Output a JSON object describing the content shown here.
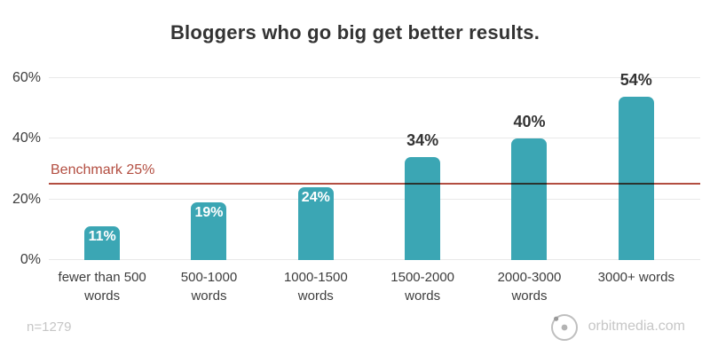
{
  "colors": {
    "bar": "#3BA6B4",
    "benchmark": "#B34E41",
    "title_text": "#333333",
    "axis_text": "#3D3D3D",
    "muted_text": "#C6C6C6",
    "gridline": "#E8E8E8",
    "bar_label_inside": "#FFFFFF"
  },
  "chart_data": {
    "type": "bar",
    "title": "Bloggers who go big get better results.",
    "categories": [
      "fewer than 500 words",
      "500-1000 words",
      "1000-1500 words",
      "1500-2000 words",
      "2000-3000 words",
      "3000+ words"
    ],
    "values": [
      11,
      19,
      24,
      34,
      40,
      54
    ],
    "value_labels": [
      "11%",
      "19%",
      "24%",
      "34%",
      "40%",
      "54%"
    ],
    "label_positions": [
      "inside",
      "inside",
      "inside",
      "above",
      "above",
      "above"
    ],
    "xlabel": "",
    "ylabel": "",
    "y_ticks": [
      "0%",
      "20%",
      "40%",
      "60%"
    ],
    "y_tick_values": [
      0,
      20,
      40,
      60
    ],
    "ylim": [
      0,
      60
    ],
    "grid": "horizontal",
    "legend": "none",
    "benchmark": {
      "label": "Benchmark 25%",
      "value": 25
    }
  },
  "footer": {
    "sample_note": "n=1279",
    "brand": "orbitmedia.com",
    "logo_icon": "orbit-logo-icon"
  }
}
